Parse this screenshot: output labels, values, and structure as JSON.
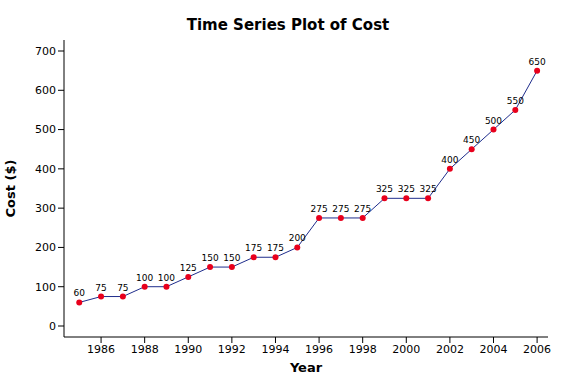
{
  "chart_data": {
    "type": "line",
    "title": "Time Series Plot of Cost",
    "x_label": "Year",
    "y_label": "Cost ($)",
    "x": [
      1985,
      1986,
      1987,
      1988,
      1989,
      1990,
      1991,
      1992,
      1993,
      1994,
      1995,
      1996,
      1997,
      1998,
      1999,
      2000,
      2001,
      2002,
      2003,
      2004,
      2005,
      2006
    ],
    "series": [
      {
        "name": "Cost",
        "color": "#1f2d8c",
        "marker": "circle",
        "values": [
          60,
          75,
          75,
          100,
          100,
          125,
          150,
          150,
          175,
          175,
          200,
          275,
          275,
          275,
          325,
          325,
          325,
          400,
          450,
          500,
          550,
          650
        ]
      }
    ],
    "xlim": [
      1984.3,
      2006.5
    ],
    "xticks": [
      1986,
      1988,
      1990,
      1992,
      1994,
      1996,
      1998,
      2000,
      2002,
      2004,
      2006
    ],
    "ylim": [
      -28,
      728
    ],
    "yticks": [
      0,
      100,
      200,
      300,
      400,
      500,
      600,
      700
    ],
    "grid": false,
    "legend": "none",
    "data_labels": true
  }
}
